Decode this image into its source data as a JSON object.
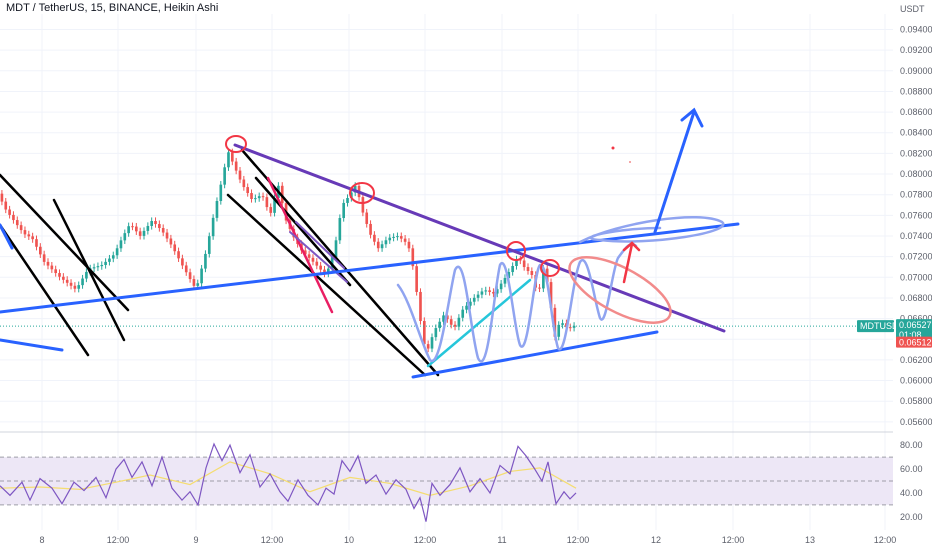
{
  "header": {
    "title": "MDT / TetherUS, 15, BINANCE, Heikin Ashi",
    "currency": "USDT"
  },
  "colors": {
    "up": "#26a69a",
    "down": "#ef5350",
    "blue_line": "#2962ff",
    "purple_line": "#673ab7",
    "black_line": "#000000",
    "magenta_line": "#e91e63",
    "red_ellipse": "#f23645",
    "rsi_line": "#7e57c2",
    "rsi_ma": "#f5dd70",
    "rsi_band": "#ede7f6"
  },
  "chart_data": [
    {
      "type": "candlestick",
      "name": "price",
      "ylim": [
        0.0555,
        0.0955
      ],
      "yticks": [
        "0.09400",
        "0.09200",
        "0.09000",
        "0.08800",
        "0.08600",
        "0.08400",
        "0.08200",
        "0.08000",
        "0.07800",
        "0.07600",
        "0.07400",
        "0.07200",
        "0.07000",
        "0.06800",
        "0.06600",
        "0.06400",
        "0.06200",
        "0.06000",
        "0.05800",
        "0.05600"
      ],
      "x_tick_labels": [
        "8",
        "12:00",
        "9",
        "12:00",
        "10",
        "12:00",
        "11",
        "12:00",
        "12",
        "12:00",
        "13",
        "12:00"
      ],
      "last_price": {
        "symbol": "MDTUSDT",
        "price": "0.06527",
        "countdown": "01:08"
      },
      "low_marker": "0.06512",
      "path": [
        [
          0,
          0.0781
        ],
        [
          8,
          0.0765
        ],
        [
          18,
          0.0752
        ],
        [
          26,
          0.0742
        ],
        [
          34,
          0.0738
        ],
        [
          46,
          0.0715
        ],
        [
          62,
          0.07
        ],
        [
          78,
          0.0688
        ],
        [
          90,
          0.0708
        ],
        [
          104,
          0.0712
        ],
        [
          116,
          0.0722
        ],
        [
          124,
          0.0738
        ],
        [
          132,
          0.0752
        ],
        [
          142,
          0.074
        ],
        [
          154,
          0.0755
        ],
        [
          164,
          0.0745
        ],
        [
          174,
          0.073
        ],
        [
          184,
          0.0712
        ],
        [
          198,
          0.0688
        ],
        [
          208,
          0.0725
        ],
        [
          216,
          0.0762
        ],
        [
          224,
          0.0795
        ],
        [
          230,
          0.0822
        ],
        [
          236,
          0.0808
        ],
        [
          244,
          0.079
        ],
        [
          254,
          0.0775
        ],
        [
          264,
          0.078
        ],
        [
          272,
          0.076
        ],
        [
          280,
          0.079
        ],
        [
          288,
          0.0755
        ],
        [
          296,
          0.0738
        ],
        [
          304,
          0.0725
        ],
        [
          312,
          0.0718
        ],
        [
          320,
          0.071
        ],
        [
          328,
          0.0702
        ],
        [
          336,
          0.0725
        ],
        [
          344,
          0.077
        ],
        [
          352,
          0.078
        ],
        [
          358,
          0.079
        ],
        [
          364,
          0.0765
        ],
        [
          372,
          0.0742
        ],
        [
          380,
          0.0728
        ],
        [
          390,
          0.0738
        ],
        [
          400,
          0.074
        ],
        [
          410,
          0.0732
        ],
        [
          416,
          0.0705
        ],
        [
          422,
          0.066
        ],
        [
          428,
          0.0625
        ],
        [
          436,
          0.0648
        ],
        [
          446,
          0.0664
        ],
        [
          456,
          0.065
        ],
        [
          464,
          0.0668
        ],
        [
          476,
          0.068
        ],
        [
          486,
          0.0688
        ],
        [
          496,
          0.0684
        ],
        [
          506,
          0.0698
        ],
        [
          514,
          0.071
        ],
        [
          520,
          0.072
        ],
        [
          526,
          0.071
        ],
        [
          534,
          0.0702
        ],
        [
          540,
          0.0682
        ],
        [
          546,
          0.0712
        ],
        [
          552,
          0.068
        ],
        [
          556,
          0.064
        ],
        [
          562,
          0.0658
        ],
        [
          570,
          0.065
        ],
        [
          576,
          0.0653
        ]
      ],
      "candle_count": 150
    },
    {
      "type": "line",
      "name": "rsi",
      "ylim": [
        14,
        86
      ],
      "yticks": [
        "80.00",
        "60.00",
        "40.00",
        "20.00"
      ],
      "band": [
        30,
        70
      ],
      "midline": 50,
      "path": [
        [
          0,
          46
        ],
        [
          10,
          38
        ],
        [
          22,
          49
        ],
        [
          30,
          34
        ],
        [
          40,
          52
        ],
        [
          52,
          44
        ],
        [
          62,
          31
        ],
        [
          74,
          49
        ],
        [
          84,
          42
        ],
        [
          96,
          53
        ],
        [
          106,
          36
        ],
        [
          116,
          60
        ],
        [
          124,
          68
        ],
        [
          132,
          53
        ],
        [
          142,
          66
        ],
        [
          152,
          46
        ],
        [
          162,
          70
        ],
        [
          172,
          44
        ],
        [
          182,
          34
        ],
        [
          190,
          41
        ],
        [
          198,
          30
        ],
        [
          206,
          61
        ],
        [
          214,
          81
        ],
        [
          222,
          67
        ],
        [
          230,
          80
        ],
        [
          240,
          57
        ],
        [
          250,
          72
        ],
        [
          260,
          45
        ],
        [
          270,
          56
        ],
        [
          280,
          41
        ],
        [
          288,
          33
        ],
        [
          298,
          51
        ],
        [
          308,
          38
        ],
        [
          318,
          30
        ],
        [
          326,
          44
        ],
        [
          334,
          39
        ],
        [
          342,
          67
        ],
        [
          350,
          58
        ],
        [
          358,
          71
        ],
        [
          366,
          48
        ],
        [
          376,
          55
        ],
        [
          386,
          39
        ],
        [
          396,
          51
        ],
        [
          406,
          43
        ],
        [
          414,
          27
        ],
        [
          420,
          36
        ],
        [
          426,
          16
        ],
        [
          432,
          48
        ],
        [
          440,
          38
        ],
        [
          450,
          47
        ],
        [
          460,
          61
        ],
        [
          470,
          41
        ],
        [
          480,
          52
        ],
        [
          490,
          40
        ],
        [
          500,
          63
        ],
        [
          510,
          56
        ],
        [
          518,
          79
        ],
        [
          526,
          71
        ],
        [
          534,
          61
        ],
        [
          542,
          50
        ],
        [
          548,
          66
        ],
        [
          556,
          31
        ],
        [
          564,
          41
        ],
        [
          570,
          35
        ],
        [
          576,
          40
        ]
      ],
      "ma_path": [
        [
          0,
          44
        ],
        [
          40,
          45
        ],
        [
          80,
          43
        ],
        [
          116,
          49
        ],
        [
          150,
          55
        ],
        [
          190,
          47
        ],
        [
          230,
          66
        ],
        [
          270,
          56
        ],
        [
          310,
          41
        ],
        [
          350,
          53
        ],
        [
          390,
          48
        ],
        [
          430,
          38
        ],
        [
          470,
          46
        ],
        [
          510,
          58
        ],
        [
          540,
          61
        ],
        [
          576,
          44
        ]
      ]
    }
  ]
}
